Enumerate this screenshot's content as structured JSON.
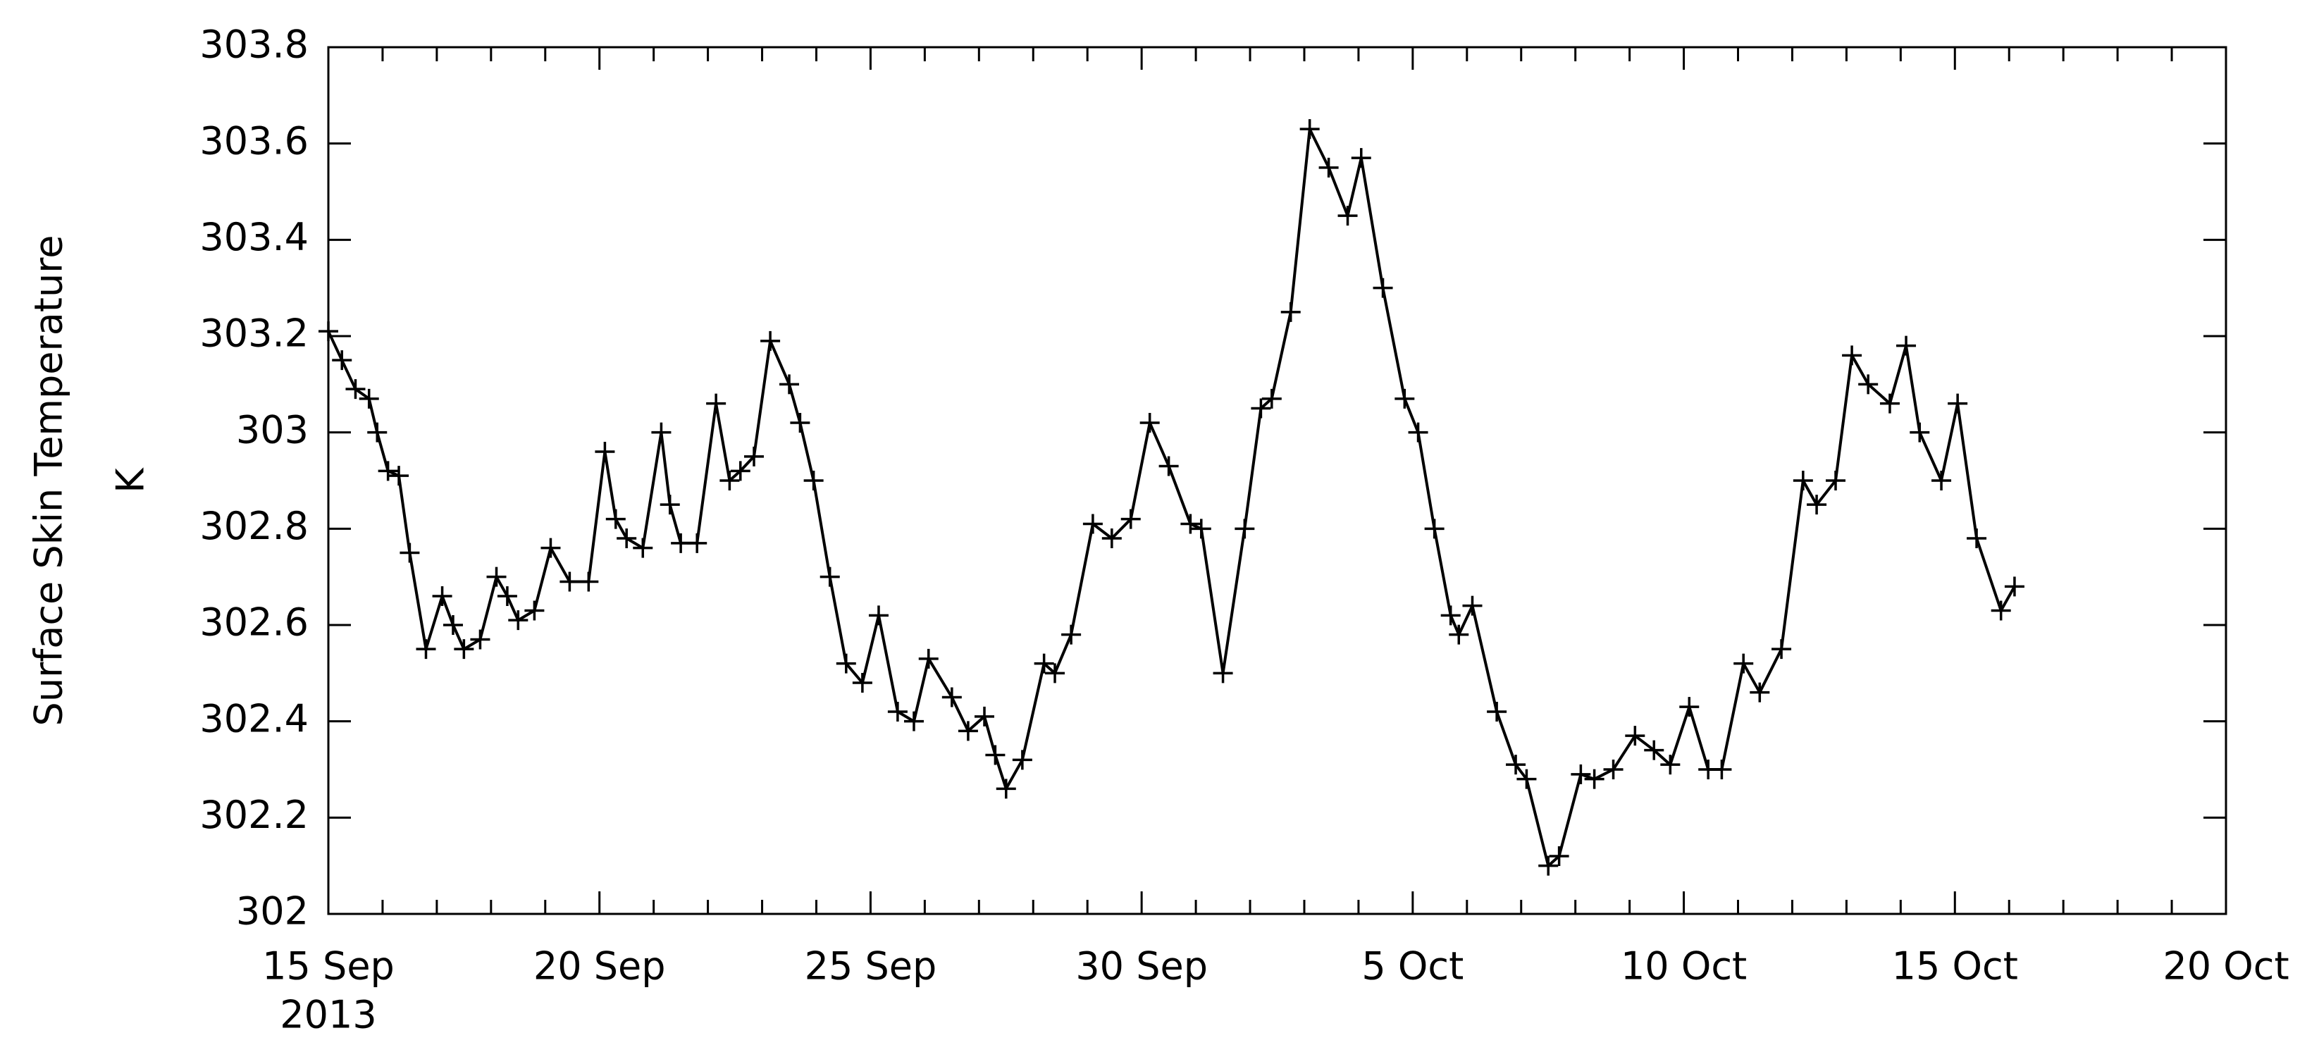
{
  "chart_data": {
    "type": "line",
    "ylabel": "Surface Skin Temperature",
    "yunit": "K",
    "x_year_label": "2013",
    "xlim": [
      0,
      35
    ],
    "xticks": [
      {
        "value": 0,
        "label": "15 Sep"
      },
      {
        "value": 5,
        "label": "20 Sep"
      },
      {
        "value": 10,
        "label": "25 Sep"
      },
      {
        "value": 15,
        "label": "30 Sep"
      },
      {
        "value": 20,
        "label": "5 Oct"
      },
      {
        "value": 25,
        "label": "10 Oct"
      },
      {
        "value": 30,
        "label": "15 Oct"
      },
      {
        "value": 35,
        "label": "20 Oct"
      }
    ],
    "xminorticks": [
      1,
      2,
      3,
      4,
      6,
      7,
      8,
      9,
      11,
      12,
      13,
      14,
      16,
      17,
      18,
      19,
      21,
      22,
      23,
      24,
      26,
      27,
      28,
      29,
      31,
      32,
      33,
      34
    ],
    "ylim": [
      302,
      303.8
    ],
    "yticks": [
      302,
      302.2,
      302.4,
      302.6,
      302.8,
      303,
      303.2,
      303.4,
      303.6,
      303.8
    ],
    "color": "#000000",
    "marker": "+",
    "x": [
      0,
      0.25,
      0.5,
      0.75,
      0.9,
      1.1,
      1.3,
      1.5,
      1.8,
      2.1,
      2.3,
      2.5,
      2.8,
      3.1,
      3.3,
      3.5,
      3.8,
      4.1,
      4.45,
      4.8,
      5.1,
      5.3,
      5.5,
      5.8,
      6.14,
      6.3,
      6.5,
      6.8,
      7.15,
      7.4,
      7.6,
      7.85,
      8.15,
      8.5,
      8.7,
      8.95,
      9.25,
      9.55,
      9.85,
      10.15,
      10.5,
      10.8,
      11.07,
      11.5,
      11.8,
      12.1,
      12.3,
      12.5,
      12.8,
      13.2,
      13.4,
      13.7,
      14.1,
      14.45,
      14.8,
      15.15,
      15.5,
      15.9,
      16.1,
      16.5,
      16.9,
      17.2,
      17.4,
      17.75,
      18.1,
      18.45,
      18.8,
      19.05,
      19.45,
      19.85,
      20.1,
      20.4,
      20.7,
      20.85,
      21.1,
      21.55,
      21.9,
      22.1,
      22.5,
      22.7,
      23.1,
      23.35,
      23.7,
      24.1,
      24.45,
      24.75,
      25.1,
      25.45,
      25.7,
      26.1,
      26.4,
      26.8,
      27.2,
      27.45,
      27.8,
      28.1,
      28.4,
      28.8,
      29.1,
      29.35,
      29.75,
      30.05,
      30.4,
      30.85,
      31.1
    ],
    "values": [
      303.21,
      303.15,
      303.09,
      303.07,
      303.0,
      302.92,
      302.91,
      302.75,
      302.55,
      302.66,
      302.6,
      302.55,
      302.57,
      302.7,
      302.66,
      302.61,
      302.63,
      302.76,
      302.69,
      302.69,
      302.96,
      302.82,
      302.78,
      302.76,
      303.0,
      302.85,
      302.77,
      302.77,
      303.06,
      302.9,
      302.92,
      302.95,
      303.19,
      303.1,
      303.02,
      302.9,
      302.7,
      302.52,
      302.48,
      302.62,
      302.42,
      302.4,
      302.53,
      302.45,
      302.38,
      302.41,
      302.33,
      302.26,
      302.32,
      302.52,
      302.5,
      302.58,
      302.81,
      302.78,
      302.82,
      303.02,
      302.93,
      302.81,
      302.8,
      302.5,
      302.8,
      303.05,
      303.07,
      303.25,
      303.63,
      303.55,
      303.45,
      303.57,
      303.3,
      303.07,
      303.0,
      302.8,
      302.62,
      302.58,
      302.64,
      302.42,
      302.31,
      302.28,
      302.1,
      302.12,
      302.29,
      302.28,
      302.3,
      302.37,
      302.34,
      302.31,
      302.43,
      302.3,
      302.3,
      302.52,
      302.46,
      302.55,
      302.9,
      302.85,
      302.9,
      303.16,
      303.1,
      303.06,
      303.18,
      303.0,
      302.9,
      303.06,
      302.78,
      302.63,
      302.68
    ]
  }
}
